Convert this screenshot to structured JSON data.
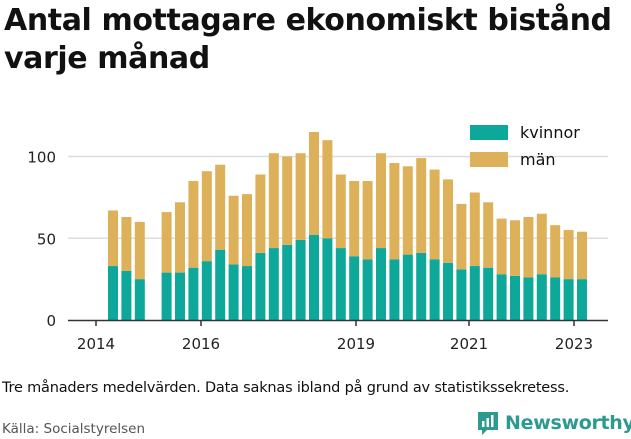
{
  "title": "Antal mottagare ekonomiskt bistånd varje månad",
  "note": "Tre månaders medelvärden. Data saknas ibland på grund av statistikssekretess.",
  "source": "Källa: Socialstyrelsen",
  "brand": "Newsworthy",
  "colors": {
    "kvinnor": "#0da89a",
    "man": "#ddb15a",
    "grid": "#dddddd",
    "axis": "#333333",
    "brand": "#2c9a8e"
  },
  "chart_data": {
    "type": "bar",
    "stacked": true,
    "x_ticks": [
      "2014",
      "2016",
      "2019",
      "2021",
      "2023"
    ],
    "y_ticks": [
      0,
      50,
      100
    ],
    "ylim": [
      0,
      120
    ],
    "legend_position": "top-right",
    "grid": true,
    "series": [
      {
        "name": "kvinnor",
        "values": [
          33,
          30,
          25,
          null,
          29,
          29,
          32,
          36,
          43,
          34,
          33,
          41,
          44,
          46,
          49,
          52,
          50,
          44,
          39,
          37,
          44,
          37,
          40,
          41,
          37,
          35,
          31,
          33,
          32,
          28,
          27,
          26,
          28,
          26,
          25,
          25
        ]
      },
      {
        "name": "män",
        "values": [
          34,
          33,
          35,
          null,
          37,
          43,
          53,
          55,
          52,
          42,
          44,
          48,
          58,
          54,
          53,
          63,
          60,
          45,
          46,
          48,
          58,
          59,
          54,
          58,
          55,
          51,
          40,
          45,
          40,
          34,
          34,
          37,
          37,
          32,
          30,
          29
        ]
      }
    ]
  }
}
